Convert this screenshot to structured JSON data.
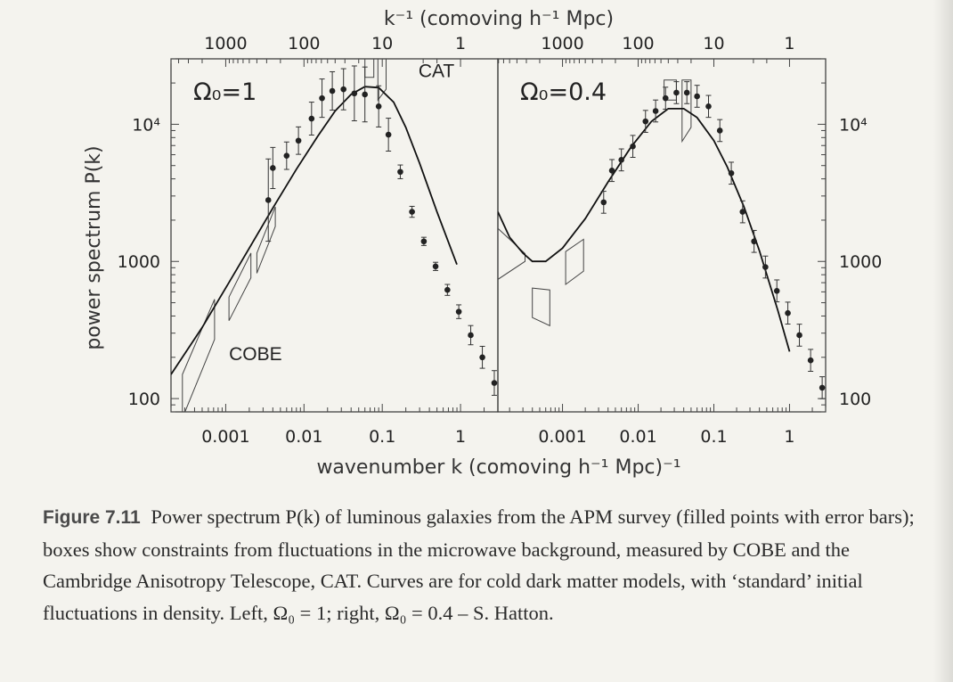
{
  "figure": {
    "top_axis_label": "k⁻¹ (comoving h⁻¹ Mpc)",
    "bottom_axis_label": "wavenumber k (comoving h⁻¹ Mpc)⁻¹",
    "left_axis_label": "power spectrum P(k)",
    "caption": {
      "label": "Figure 7.11",
      "text": "Power spectrum P(k) of luminous galaxies from the APM survey (filled points with error bars); boxes show constraints from fluctuations in the microwave background, measured by COBE and the Cambridge Anisotropy Telescope, CAT. Curves are for cold dark matter models, with ‘standard’ initial fluctuations in density. Left, Ω₀ = 1; right, Ω₀ = 0.4 – S. Hatton."
    }
  },
  "chart_data": [
    {
      "type": "scatter",
      "panel": "left",
      "label": "Ω₀=1",
      "xscale": "log",
      "yscale": "log",
      "xlim": [
        0.0002,
        3
      ],
      "ylim": [
        80,
        30000
      ],
      "x_ticks": [
        0.001,
        0.01,
        0.1,
        1
      ],
      "x_tick_labels": [
        "0.001",
        "0.01",
        "0.1",
        "1"
      ],
      "y_ticks": [
        100,
        1000,
        10000
      ],
      "y_tick_labels": [
        "100",
        "1000",
        "10⁴"
      ],
      "top_ticks_k_inv": [
        1000,
        100,
        10,
        1
      ],
      "top_tick_labels": [
        "1000",
        "100",
        "10",
        "1"
      ],
      "points": {
        "k": [
          0.0035,
          0.004,
          0.006,
          0.0085,
          0.0125,
          0.017,
          0.023,
          0.032,
          0.044,
          0.06,
          0.09,
          0.12,
          0.17,
          0.24,
          0.34,
          0.48,
          0.68,
          0.95,
          1.35,
          1.9,
          2.7
        ],
        "P": [
          2800,
          4800,
          5900,
          7600,
          11000,
          15500,
          17500,
          18000,
          16800,
          16500,
          13500,
          8400,
          4500,
          2300,
          1400,
          920,
          620,
          430,
          290,
          200,
          130
        ],
        "err": [
          0.3,
          0.15,
          0.1,
          0.1,
          0.12,
          0.14,
          0.14,
          0.15,
          0.2,
          0.2,
          0.15,
          0.12,
          0.05,
          0.04,
          0.03,
          0.03,
          0.04,
          0.05,
          0.07,
          0.08,
          0.09
        ]
      },
      "curve": {
        "k": [
          0.0002,
          0.0005,
          0.001,
          0.002,
          0.004,
          0.008,
          0.015,
          0.025,
          0.04,
          0.06,
          0.09,
          0.14,
          0.2,
          0.3,
          0.5,
          0.9
        ],
        "P": [
          150,
          330,
          640,
          1250,
          2450,
          4700,
          8200,
          12500,
          16500,
          18800,
          18500,
          14500,
          9500,
          5200,
          2300,
          950
        ]
      },
      "boxes": [
        {
          "label": "COBE",
          "corners": [
            [
              0.00028,
              150
            ],
            [
              0.00072,
              530
            ],
            [
              0.00072,
              270
            ],
            [
              0.00028,
              72
            ]
          ]
        },
        {
          "label": "COBE",
          "corners": [
            [
              0.0011,
              550
            ],
            [
              0.0021,
              1150
            ],
            [
              0.0021,
              760
            ],
            [
              0.0011,
              370
            ]
          ]
        },
        {
          "label": "COBE",
          "corners": [
            [
              0.0025,
              1150
            ],
            [
              0.0043,
              2500
            ],
            [
              0.0043,
              1800
            ],
            [
              0.0025,
              820
            ]
          ]
        },
        {
          "label": "CAT",
          "corners": [
            [
              0.06,
              34000
            ],
            [
              0.078,
              34000
            ],
            [
              0.078,
              22000
            ],
            [
              0.06,
              22000
            ]
          ]
        },
        {
          "label": "CAT",
          "corners": [
            [
              0.088,
              34000
            ],
            [
              0.112,
              34000
            ],
            [
              0.112,
              18000
            ],
            [
              0.088,
              15000
            ]
          ]
        }
      ],
      "annotations": [
        {
          "text": "COBE",
          "k": 0.0011,
          "P": 190
        },
        {
          "text": "CAT",
          "k": 0.29,
          "P": 22000
        }
      ]
    },
    {
      "type": "scatter",
      "panel": "right",
      "label": "Ω₀=0.4",
      "xscale": "log",
      "yscale": "log",
      "xlim": [
        0.00014,
        3
      ],
      "ylim": [
        80,
        30000
      ],
      "x_ticks": [
        0.001,
        0.01,
        0.1,
        1
      ],
      "x_tick_labels": [
        "0.001",
        "0.01",
        "0.1",
        "1"
      ],
      "y_ticks": [
        100,
        1000,
        10000
      ],
      "y_tick_labels": [
        "100",
        "1000",
        "10⁴"
      ],
      "top_ticks_k_inv": [
        1000,
        100,
        10,
        1
      ],
      "top_tick_labels": [
        "1000",
        "100",
        "10",
        "1"
      ],
      "points": {
        "k": [
          0.0035,
          0.0045,
          0.006,
          0.0085,
          0.0125,
          0.017,
          0.023,
          0.032,
          0.044,
          0.06,
          0.085,
          0.12,
          0.17,
          0.24,
          0.34,
          0.48,
          0.68,
          0.95,
          1.35,
          1.9,
          2.7
        ],
        "P": [
          2700,
          4600,
          5500,
          6900,
          10500,
          12500,
          15500,
          17000,
          17000,
          16000,
          13500,
          9000,
          4400,
          2300,
          1400,
          910,
          610,
          420,
          290,
          190,
          120
        ]
      },
      "curve": {
        "k": [
          0.00014,
          0.0002,
          0.0003,
          0.0004,
          0.0006,
          0.001,
          0.002,
          0.004,
          0.008,
          0.015,
          0.025,
          0.04,
          0.06,
          0.1,
          0.15,
          0.25,
          0.4,
          0.7,
          1.0
        ],
        "P": [
          2300,
          1500,
          1150,
          1000,
          1000,
          1250,
          2050,
          3800,
          6800,
          10500,
          13000,
          13000,
          11200,
          7600,
          4900,
          2500,
          1200,
          440,
          220
        ]
      },
      "boxes": [
        {
          "label": "COBE",
          "corners": [
            [
              0.00014,
              740
            ],
            [
              0.00032,
              1000
            ],
            [
              0.00032,
              1140
            ],
            [
              0.00014,
              1740
            ]
          ]
        },
        {
          "label": "COBE",
          "corners": [
            [
              0.0004,
              640
            ],
            [
              0.00068,
              620
            ],
            [
              0.00068,
              340
            ],
            [
              0.0004,
              390
            ]
          ]
        },
        {
          "label": "COBE",
          "corners": [
            [
              0.0011,
              680
            ],
            [
              0.0019,
              850
            ],
            [
              0.0019,
              1450
            ],
            [
              0.0011,
              1180
            ]
          ]
        },
        {
          "label": "CAT",
          "corners": [
            [
              0.022,
              21000
            ],
            [
              0.032,
              21000
            ],
            [
              0.032,
              15000
            ],
            [
              0.022,
              15000
            ]
          ]
        },
        {
          "label": "CAT",
          "corners": [
            [
              0.038,
              21000
            ],
            [
              0.05,
              21000
            ],
            [
              0.05,
              9500
            ],
            [
              0.038,
              7500
            ]
          ]
        }
      ]
    }
  ]
}
